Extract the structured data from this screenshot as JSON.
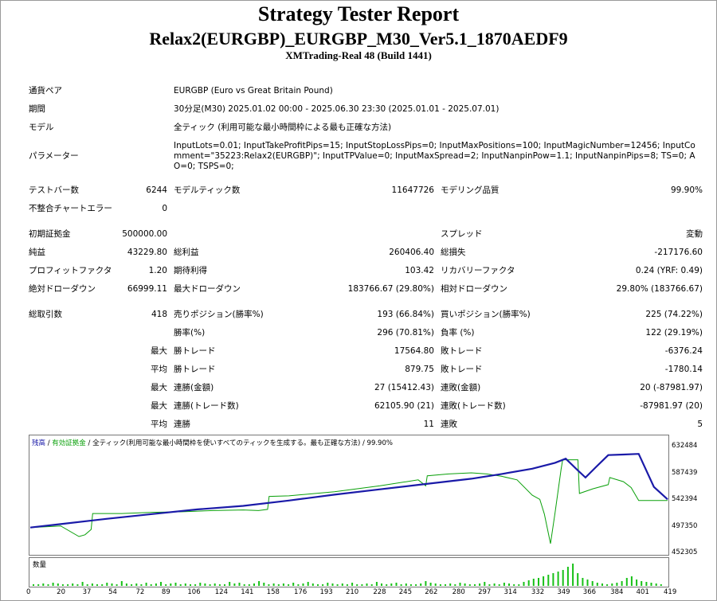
{
  "report": {
    "title": "Strategy Tester Report",
    "subtitle": "Relax2(EURGBP)_EURGBP_M30_Ver5.1_1870AEDF9",
    "build": "XMTrading-Real 48 (Build 1441)"
  },
  "info": {
    "symbol_label": "通貨ペア",
    "symbol_value": "EURGBP (Euro vs Great Britain Pound)",
    "period_label": "期間",
    "period_value": "30分足(M30) 2025.01.02 00:00 - 2025.06.30 23:30 (2025.01.01 - 2025.07.01)",
    "model_label": "モデル",
    "model_value": "全ティック (利用可能な最小時間枠による最も正確な方法)",
    "params_label": "パラメーター",
    "params_value": "InputLots=0.01; InputTakeProfitPips=15; InputStopLossPips=0; InputMaxPositions=100; InputMagicNumber=12456; InputComment=\"35223:Relax2(EURGBP)\"; InputTPValue=0; InputMaxSpread=2; InputNanpinPow=1.1; InputNanpinPips=8; TS=0; AO=0; TSPS=0;"
  },
  "stats": {
    "bars_label": "テストバー数",
    "bars_value": "6244",
    "ticks_label": "モデルティック数",
    "ticks_value": "11647726",
    "quality_label": "モデリング品質",
    "quality_value": "99.90%",
    "mismatch_label": "不整合チャートエラー",
    "mismatch_value": "0",
    "deposit_label": "初期証拠金",
    "deposit_value": "500000.00",
    "spread_label": "スプレッド",
    "spread_value": "変動",
    "net_label": "純益",
    "net_value": "43229.80",
    "gross_profit_label": "総利益",
    "gross_profit_value": "260406.40",
    "gross_loss_label": "総損失",
    "gross_loss_value": "-217176.60",
    "pf_label": "プロフィットファクタ",
    "pf_value": "1.20",
    "expected_label": "期待利得",
    "expected_value": "103.42",
    "recovery_label": "リカバリーファクタ",
    "recovery_value": "0.24 (YRF: 0.49)",
    "abs_dd_label": "絶対ドローダウン",
    "abs_dd_value": "66999.11",
    "max_dd_label": "最大ドローダウン",
    "max_dd_value": "183766.67 (29.80%)",
    "rel_dd_label": "相対ドローダウン",
    "rel_dd_value": "29.80% (183766.67)",
    "trades_label": "総取引数",
    "trades_value": "418",
    "short_label": "売りポジション(勝率%)",
    "short_value": "193 (66.84%)",
    "long_label": "買いポジション(勝率%)",
    "long_value": "225 (74.22%)",
    "win_rate_label": "勝率(%)",
    "win_rate_value": "296 (70.81%)",
    "loss_rate_label": "負率 (%)",
    "loss_rate_value": "122 (29.19%)",
    "max_label": "最大",
    "avg_label": "平均",
    "largest_win_label": "勝トレード",
    "largest_win_value": "17564.80",
    "largest_loss_label": "敗トレード",
    "largest_loss_value": "-6376.24",
    "avg_win_label": "勝トレード",
    "avg_win_value": "879.75",
    "avg_loss_label": "敗トレード",
    "avg_loss_value": "-1780.14",
    "max_cons_win_amt_label": "連勝(金額)",
    "max_cons_win_amt_value": "27 (15412.43)",
    "max_cons_loss_amt_label": "連敗(金額)",
    "max_cons_loss_amt_value": "20 (-87981.97)",
    "max_cons_win_cnt_label": "連勝(トレード数)",
    "max_cons_win_cnt_value": "62105.90 (21)",
    "max_cons_loss_cnt_label": "連敗(トレード数)",
    "max_cons_loss_cnt_value": "-87981.97 (20)",
    "avg_cons_win_label": "連勝",
    "avg_cons_win_value": "11",
    "avg_cons_loss_label": "連敗",
    "avg_cons_loss_value": "5"
  },
  "chart_legend": {
    "balance": "残高",
    "sep1": " / ",
    "equity": "有効証拠金",
    "sep2": " / ",
    "desc": "全ティック(利用可能な最小時間枠を使いすべてのティックを生成する。最も正確な方法) / 99.90%"
  },
  "volume_label": "数量",
  "colors": {
    "balance": "#1a1aa8",
    "equity": "#0aa00a",
    "volume": "#17c017"
  },
  "chart_data": {
    "type": "line",
    "ylim": [
      452305,
      652000
    ],
    "yticks": [
      "632484",
      "587439",
      "542394",
      "497350",
      "452305"
    ],
    "xticks": [
      "0",
      "20",
      "37",
      "54",
      "72",
      "89",
      "106",
      "124",
      "141",
      "158",
      "176",
      "193",
      "210",
      "228",
      "245",
      "262",
      "280",
      "297",
      "314",
      "332",
      "349",
      "366",
      "384",
      "401",
      "419"
    ],
    "series": [
      {
        "name": "残高",
        "x": [
          0,
          20,
          50,
          80,
          110,
          140,
          170,
          200,
          230,
          260,
          290,
          310,
          330,
          345,
          352,
          360,
          365,
          372,
          380,
          390,
          400,
          410,
          419
        ],
        "values": [
          497300,
          503000,
          512000,
          520000,
          528000,
          534000,
          543000,
          553000,
          562000,
          571000,
          580000,
          588000,
          597000,
          607000,
          614000,
          594000,
          582000,
          600000,
          620000,
          621000,
          622000,
          566000,
          545000
        ]
      },
      {
        "name": "有効証拠金",
        "x": [
          0,
          20,
          32,
          36,
          40,
          41,
          60,
          80,
          100,
          120,
          140,
          150,
          156,
          157,
          170,
          200,
          230,
          255,
          260,
          261,
          275,
          290,
          300,
          310,
          320,
          330,
          335,
          338,
          342,
          345,
          349,
          350,
          360,
          361,
          370,
          380,
          381,
          390,
          395,
          400,
          410,
          419
        ],
        "values": [
          497300,
          500000,
          482000,
          485000,
          494000,
          521000,
          521000,
          523000,
          524000,
          526000,
          527000,
          526000,
          528000,
          550000,
          551000,
          558000,
          568000,
          578000,
          568000,
          585000,
          588000,
          590000,
          588000,
          584000,
          578000,
          552000,
          545000,
          520000,
          470000,
          522000,
          596000,
          612000,
          612000,
          555000,
          563000,
          570000,
          582000,
          575000,
          565000,
          543000,
          543000,
          543000
        ]
      }
    ],
    "volume": [
      2,
      2,
      3,
      2,
      4,
      3,
      2,
      2,
      3,
      2,
      5,
      2,
      3,
      2,
      2,
      4,
      3,
      2,
      6,
      3,
      2,
      3,
      2,
      4,
      2,
      3,
      5,
      2,
      3,
      4,
      2,
      3,
      2,
      2,
      4,
      3,
      2,
      3,
      2,
      2,
      5,
      3,
      4,
      2,
      2,
      3,
      6,
      4,
      2,
      3,
      2,
      3,
      2,
      4,
      2,
      3,
      5,
      3,
      2,
      2,
      4,
      3,
      2,
      3,
      2,
      4,
      2,
      2,
      3,
      2,
      5,
      3,
      2,
      3,
      4,
      2,
      3,
      2,
      2,
      3,
      6,
      4,
      3,
      2,
      2,
      3,
      2,
      4,
      3,
      2,
      2,
      3,
      5,
      2,
      3,
      2,
      4,
      3,
      2,
      2,
      5,
      7,
      9,
      10,
      12,
      14,
      16,
      18,
      20,
      24,
      28,
      16,
      10,
      8,
      6,
      4,
      3,
      2,
      3,
      4,
      6,
      10,
      12,
      8,
      6,
      5,
      4,
      3,
      2
    ]
  }
}
